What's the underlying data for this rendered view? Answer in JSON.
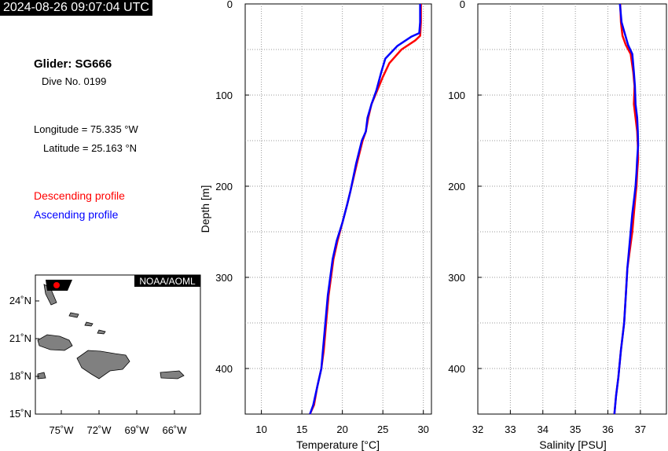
{
  "header": {
    "timestamp": "2024-08-26 09:07:04 UTC"
  },
  "info": {
    "glider": "Glider: SG666",
    "dive": "Dive No. 0199",
    "longitude": "Longitude = 75.335 °W",
    "latitude": "Latitude = 25.163 °N",
    "descending_label": "Descending profile",
    "ascending_label": "Ascending profile"
  },
  "colors": {
    "descending": "#ff0000",
    "ascending": "#0000ff",
    "land": "#808080"
  },
  "map": {
    "credit": "NOAA/AOML",
    "lat_ticks": [
      "24˚N",
      "21˚N",
      "18˚N",
      "15˚N"
    ],
    "lon_ticks": [
      "75˚W",
      "72˚W",
      "69˚W",
      "66˚W"
    ],
    "glider_position": {
      "lon": -75.335,
      "lat": 25.163
    }
  },
  "chart_data": [
    {
      "type": "line",
      "xlabel": "Temperature [°C]",
      "ylabel": "Depth [m]",
      "xlim": [
        8,
        31
      ],
      "ylim": [
        0,
        450
      ],
      "y_inverted": true,
      "grid": true,
      "xticks": [
        10,
        15,
        20,
        25,
        30
      ],
      "yticks": [
        0,
        100,
        200,
        300,
        400
      ],
      "series": [
        {
          "name": "Descending profile",
          "color": "#ff0000",
          "x": [
            29.7,
            29.7,
            29.6,
            29.0,
            27.3,
            25.8,
            25.0,
            24.3,
            23.6,
            23.2,
            22.9,
            22.5,
            21.8,
            21.0,
            20.6,
            20.0,
            19.4,
            18.9,
            18.6,
            18.3,
            18.0,
            17.7,
            17.4,
            16.9,
            16.5,
            16.0
          ],
          "y": [
            0,
            20,
            35,
            40,
            50,
            65,
            80,
            95,
            110,
            125,
            140,
            150,
            175,
            205,
            220,
            240,
            260,
            280,
            300,
            320,
            350,
            380,
            400,
            420,
            440,
            450
          ]
        },
        {
          "name": "Ascending profile",
          "color": "#0000ff",
          "x": [
            29.6,
            29.6,
            29.5,
            28.5,
            26.8,
            25.3,
            24.8,
            24.2,
            23.6,
            23.1,
            22.9,
            22.4,
            21.7,
            21.0,
            20.6,
            20.0,
            19.3,
            18.8,
            18.5,
            18.2,
            17.9,
            17.6,
            17.4,
            16.9,
            16.4,
            16.0
          ],
          "y": [
            0,
            20,
            32,
            36,
            46,
            60,
            75,
            95,
            110,
            125,
            140,
            150,
            175,
            205,
            220,
            240,
            260,
            280,
            300,
            320,
            350,
            380,
            400,
            420,
            440,
            450
          ]
        }
      ]
    },
    {
      "type": "line",
      "xlabel": "Salinity [PSU]",
      "ylabel": "",
      "xlim": [
        32,
        37.8
      ],
      "ylim": [
        0,
        450
      ],
      "y_inverted": true,
      "grid": true,
      "xticks": [
        32,
        33,
        34,
        35,
        36,
        37
      ],
      "yticks": [
        0,
        100,
        200,
        300,
        400
      ],
      "series": [
        {
          "name": "Descending profile",
          "color": "#ff0000",
          "x": [
            36.38,
            36.4,
            36.45,
            36.55,
            36.7,
            36.78,
            36.82,
            36.8,
            36.85,
            36.9,
            36.92,
            36.93,
            36.9,
            36.88,
            36.85,
            36.8,
            36.75,
            36.6,
            36.55,
            36.5,
            36.4,
            36.32,
            36.25,
            36.2
          ],
          "y": [
            0,
            20,
            35,
            45,
            55,
            75,
            90,
            110,
            125,
            140,
            155,
            170,
            185,
            200,
            210,
            230,
            250,
            290,
            320,
            350,
            380,
            410,
            430,
            450
          ]
        },
        {
          "name": "Ascending profile",
          "color": "#0000ff",
          "x": [
            36.37,
            36.42,
            36.5,
            36.62,
            36.75,
            36.8,
            36.83,
            36.85,
            36.9,
            36.92,
            36.93,
            36.9,
            36.88,
            36.85,
            36.82,
            36.75,
            36.7,
            36.6,
            36.55,
            36.5,
            36.4,
            36.32,
            36.25,
            36.2
          ],
          "y": [
            0,
            20,
            30,
            45,
            55,
            75,
            90,
            110,
            125,
            140,
            155,
            170,
            185,
            200,
            210,
            230,
            250,
            290,
            320,
            350,
            380,
            410,
            430,
            450
          ]
        }
      ]
    }
  ]
}
